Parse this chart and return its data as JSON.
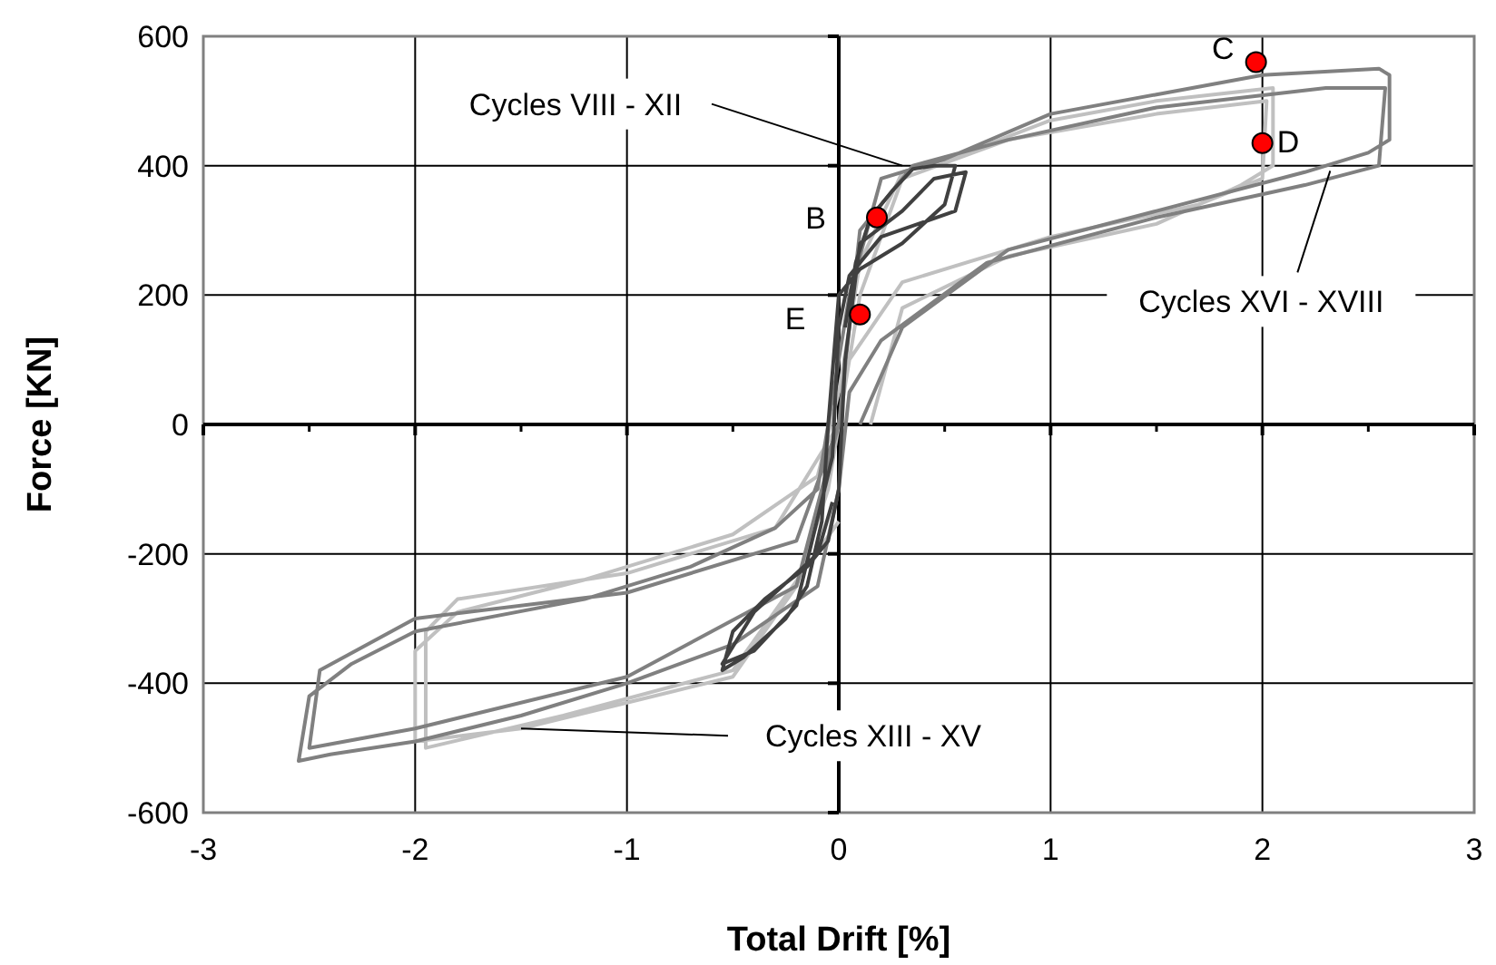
{
  "chart_data": {
    "type": "line",
    "xlabel": "Total Drift [%]",
    "ylabel": "Force [KN]",
    "xlim": [
      -3,
      3
    ],
    "ylim": [
      -600,
      600
    ],
    "xticks": [
      -3,
      -2,
      -1,
      0,
      1,
      2,
      3
    ],
    "yticks": [
      -600,
      -400,
      -200,
      0,
      200,
      400,
      600
    ],
    "grid": true,
    "marker": "none",
    "line_style": "solid",
    "series": [
      {
        "color": "#c0c0c0",
        "x": [
          0.15,
          0.3,
          0.8,
          1.5,
          1.9,
          2.05,
          2.05,
          1.5,
          1,
          0.6,
          0.3,
          0.1,
          0,
          -0.1,
          -0.5,
          -1.2,
          -1.8,
          -2,
          -2,
          -1.5,
          -1,
          -0.5,
          -0.2,
          -0.05,
          0.05,
          0.3,
          1,
          1.7,
          2,
          2.02,
          1.5,
          0.8,
          0.3,
          0.1,
          0,
          -0.3,
          -1,
          -1.8,
          -1.95,
          -1.95,
          -1.3,
          -0.5,
          0
        ],
        "values": [
          0,
          180,
          260,
          310,
          370,
          400,
          520,
          500,
          470,
          420,
          390,
          250,
          50,
          -80,
          -170,
          -240,
          -290,
          -350,
          -490,
          -470,
          -430,
          -390,
          -250,
          -100,
          100,
          220,
          290,
          340,
          380,
          500,
          480,
          440,
          380,
          200,
          0,
          -160,
          -230,
          -270,
          -320,
          -500,
          -450,
          -380,
          -150
        ]
      },
      {
        "color": "#808080",
        "x": [
          0.1,
          0.3,
          0.8,
          1.5,
          2.2,
          2.5,
          2.6,
          2.6,
          2.55,
          2,
          1.5,
          1,
          0.5,
          0.2,
          0.05,
          -0.05,
          -0.1,
          -0.3,
          -0.7,
          -1.2,
          -2,
          -2.3,
          -2.5,
          -2.55,
          -2.4,
          -2,
          -1.5,
          -1,
          -0.5,
          -0.1,
          0,
          0.05,
          0.2,
          0.7,
          1.5,
          2.2,
          2.55,
          2.58,
          2.3,
          1.5,
          0.8,
          0.35,
          0.1,
          0,
          -0.2,
          -1,
          -2,
          -2.45,
          -2.5,
          -2,
          -1,
          -0.2,
          0
        ],
        "values": [
          0,
          150,
          270,
          330,
          390,
          420,
          440,
          540,
          550,
          540,
          510,
          480,
          410,
          380,
          200,
          0,
          -100,
          -160,
          -220,
          -270,
          -320,
          -370,
          -420,
          -520,
          -510,
          -490,
          -450,
          -400,
          -340,
          -250,
          -100,
          50,
          130,
          250,
          320,
          370,
          400,
          520,
          520,
          490,
          440,
          400,
          300,
          0,
          -180,
          -260,
          -300,
          -380,
          -500,
          -470,
          -390,
          -250,
          0
        ]
      },
      {
        "color": "#404040",
        "x": [
          0.03,
          0.08,
          0.15,
          0.25,
          0.35,
          0.45,
          0.55,
          0.5,
          0.3,
          0.1,
          0,
          -0.05,
          -0.08,
          -0.15,
          -0.25,
          -0.45,
          -0.55,
          -0.5,
          -0.35,
          -0.15,
          -0.05,
          0,
          0.03,
          0.1,
          0.3,
          0.45,
          0.6,
          0.55,
          0.2,
          0.05,
          0,
          -0.03,
          -0.2,
          -0.4,
          -0.55,
          -0.4,
          -0.1,
          -0.03
        ],
        "values": [
          150,
          250,
          320,
          360,
          395,
          400,
          400,
          340,
          280,
          240,
          200,
          0,
          -150,
          -250,
          -300,
          -360,
          -380,
          -320,
          -270,
          -220,
          -180,
          -100,
          100,
          280,
          330,
          380,
          390,
          330,
          290,
          230,
          150,
          -50,
          -280,
          -350,
          -370,
          -290,
          -200,
          -120
        ]
      },
      {
        "type": "scatter",
        "marker": "circle",
        "color": "#ff0000",
        "x": [
          0.18,
          1.97,
          2.0,
          0.1
        ],
        "values": [
          320,
          560,
          435,
          170
        ]
      }
    ],
    "annotations": [
      {
        "text": "B",
        "x": 0.18,
        "y": 320
      },
      {
        "text": "C",
        "x": 1.97,
        "y": 560
      },
      {
        "text": "D",
        "x": 2.0,
        "y": 435
      },
      {
        "text": "E",
        "x": 0.1,
        "y": 170
      },
      {
        "text": "Cycles VIII - XII",
        "x": 0.3,
        "y": 400
      },
      {
        "text": "Cycles XVI - XVIII",
        "x": 2.32,
        "y": 392
      },
      {
        "text": "Cycles XIII - XV",
        "x": -1.5,
        "y": -470
      }
    ]
  }
}
